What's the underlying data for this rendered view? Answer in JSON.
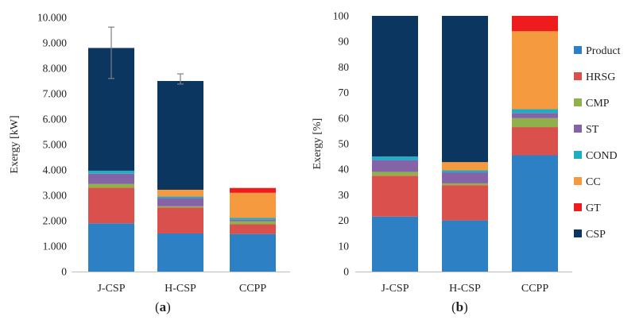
{
  "captions": {
    "a_open": "(",
    "a_letter": "a",
    "a_close": ")",
    "b_open": "(",
    "b_letter": "b",
    "b_close": ")"
  },
  "chart_data": [
    {
      "type": "bar",
      "stacked": true,
      "categories": [
        "J-CSP",
        "H-CSP",
        "CCPP"
      ],
      "ylabel": "Exergy [kW]",
      "ylim": [
        0,
        10000
      ],
      "yticks": [
        "0",
        "1.000",
        "2.000",
        "3.000",
        "4.000",
        "5.000",
        "6.000",
        "7.000",
        "8.000",
        "9.000",
        "10.000"
      ],
      "grid": false,
      "series": [
        {
          "name": "Product",
          "color": "#2e80c4",
          "values": [
            1900,
            1500,
            1480
          ]
        },
        {
          "name": "HRSG",
          "color": "#d9504d",
          "values": [
            1400,
            1020,
            380
          ]
        },
        {
          "name": "CMP",
          "color": "#8fb04a",
          "values": [
            150,
            50,
            120
          ]
        },
        {
          "name": "ST",
          "color": "#8463a6",
          "values": [
            400,
            330,
            60
          ]
        },
        {
          "name": "COND",
          "color": "#1fadc6",
          "values": [
            120,
            60,
            70
          ]
        },
        {
          "name": "CC",
          "color": "#f59a3e",
          "values": [
            0,
            260,
            990
          ]
        },
        {
          "name": "GT",
          "color": "#ee1c1c",
          "values": [
            0,
            0,
            190
          ]
        },
        {
          "name": "CSP",
          "color": "#0b3660",
          "values": [
            4830,
            4280,
            0
          ]
        }
      ],
      "error_bars": {
        "J-CSP": [
          7600,
          9620
        ],
        "H-CSP": [
          7380,
          7780
        ]
      }
    },
    {
      "type": "bar",
      "stacked": true,
      "categories": [
        "J-CSP",
        "H-CSP",
        "CCPP"
      ],
      "ylabel": "Exergy [%]",
      "ylim": [
        0,
        100
      ],
      "yticks": [
        "0",
        "10",
        "20",
        "30",
        "40",
        "50",
        "60",
        "70",
        "80",
        "90",
        "100"
      ],
      "grid": false,
      "legend": "right",
      "series": [
        {
          "name": "Product",
          "color": "#2e80c4",
          "values": [
            21.5,
            20.0,
            45.5
          ]
        },
        {
          "name": "HRSG",
          "color": "#d9504d",
          "values": [
            16.0,
            13.8,
            11.0
          ]
        },
        {
          "name": "CMP",
          "color": "#8fb04a",
          "values": [
            1.5,
            0.7,
            3.5
          ]
        },
        {
          "name": "ST",
          "color": "#8463a6",
          "values": [
            4.6,
            4.3,
            2.0
          ]
        },
        {
          "name": "COND",
          "color": "#1fadc6",
          "values": [
            1.4,
            0.8,
            1.5
          ]
        },
        {
          "name": "CC",
          "color": "#f59a3e",
          "values": [
            0.0,
            3.2,
            30.5
          ]
        },
        {
          "name": "GT",
          "color": "#ee1c1c",
          "values": [
            0.0,
            0.0,
            6.0
          ]
        },
        {
          "name": "CSP",
          "color": "#0b3660",
          "values": [
            55.0,
            57.2,
            0.0
          ]
        }
      ]
    }
  ]
}
